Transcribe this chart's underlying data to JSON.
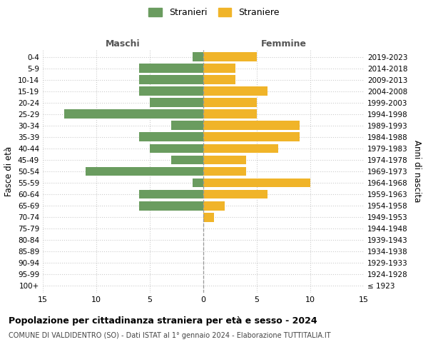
{
  "age_groups": [
    "100+",
    "95-99",
    "90-94",
    "85-89",
    "80-84",
    "75-79",
    "70-74",
    "65-69",
    "60-64",
    "55-59",
    "50-54",
    "45-49",
    "40-44",
    "35-39",
    "30-34",
    "25-29",
    "20-24",
    "15-19",
    "10-14",
    "5-9",
    "0-4"
  ],
  "birth_years": [
    "≤ 1923",
    "1924-1928",
    "1929-1933",
    "1934-1938",
    "1939-1943",
    "1944-1948",
    "1949-1953",
    "1954-1958",
    "1959-1963",
    "1964-1968",
    "1969-1973",
    "1974-1978",
    "1979-1983",
    "1984-1988",
    "1989-1993",
    "1994-1998",
    "1999-2003",
    "2004-2008",
    "2009-2013",
    "2014-2018",
    "2019-2023"
  ],
  "males": [
    0,
    0,
    0,
    0,
    0,
    0,
    0,
    6,
    6,
    1,
    11,
    3,
    5,
    6,
    3,
    13,
    5,
    6,
    6,
    6,
    1
  ],
  "females": [
    0,
    0,
    0,
    0,
    0,
    0,
    1,
    2,
    6,
    10,
    4,
    4,
    7,
    9,
    9,
    5,
    5,
    6,
    3,
    3,
    5
  ],
  "male_color": "#6a9c5f",
  "female_color": "#f0b429",
  "title": "Popolazione per cittadinanza straniera per età e sesso - 2024",
  "subtitle": "COMUNE DI VALDIDENTRO (SO) - Dati ISTAT al 1° gennaio 2024 - Elaborazione TUTTITALIA.IT",
  "legend_male": "Stranieri",
  "legend_female": "Straniere",
  "label_left": "Maschi",
  "label_right": "Femmine",
  "ylabel_left": "Fasce di età",
  "ylabel_right": "Anni di nascita",
  "xlim": 15,
  "background_color": "#ffffff",
  "grid_color": "#cccccc",
  "bar_height": 0.8
}
